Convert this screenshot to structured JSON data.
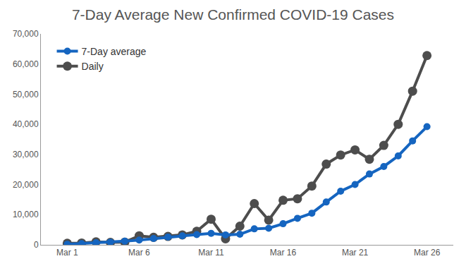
{
  "chart_data": {
    "type": "line",
    "title": "7-Day Average New Confirmed COVID-19 Cases",
    "categories": [
      "Mar 1",
      null,
      null,
      null,
      null,
      "Mar 6",
      null,
      null,
      null,
      null,
      "Mar 11",
      null,
      null,
      null,
      null,
      "Mar 16",
      null,
      null,
      null,
      null,
      "Mar 21",
      null,
      null,
      null,
      null,
      "Mar 26"
    ],
    "series": [
      {
        "name": "7-Day average",
        "color": "#1565c0",
        "marker": "circle",
        "line_style": "solid",
        "values": [
          200,
          400,
          700,
          900,
          1200,
          1600,
          2100,
          2600,
          3000,
          3400,
          3800,
          3300,
          3500,
          5300,
          5500,
          7000,
          8800,
          10500,
          14200,
          17800,
          20000,
          23500,
          26000,
          29500,
          34500,
          39200
        ]
      },
      {
        "name": "Daily",
        "color": "#4d4d4d",
        "marker": "circle",
        "line_style": "solid",
        "values": [
          500,
          600,
          1000,
          800,
          900,
          3000,
          2500,
          2800,
          3300,
          4500,
          8500,
          2000,
          6200,
          13700,
          8200,
          14800,
          15300,
          19500,
          26800,
          29800,
          31500,
          28400,
          33000,
          40000,
          51000,
          62800
        ]
      }
    ],
    "ylim": [
      0,
      70000
    ],
    "yticks": [
      0,
      {
        "value": 10000,
        "label": "10,000"
      },
      {
        "value": 20000,
        "label": "20,000"
      },
      {
        "value": 30000,
        "label": "30,000"
      },
      {
        "value": 40000,
        "label": "40,000"
      },
      {
        "value": 50000,
        "label": "50,000"
      },
      {
        "value": 60000,
        "label": "60,000"
      },
      {
        "value": 70000,
        "label": "70,000"
      }
    ],
    "grid": false,
    "legend": "top-left"
  }
}
